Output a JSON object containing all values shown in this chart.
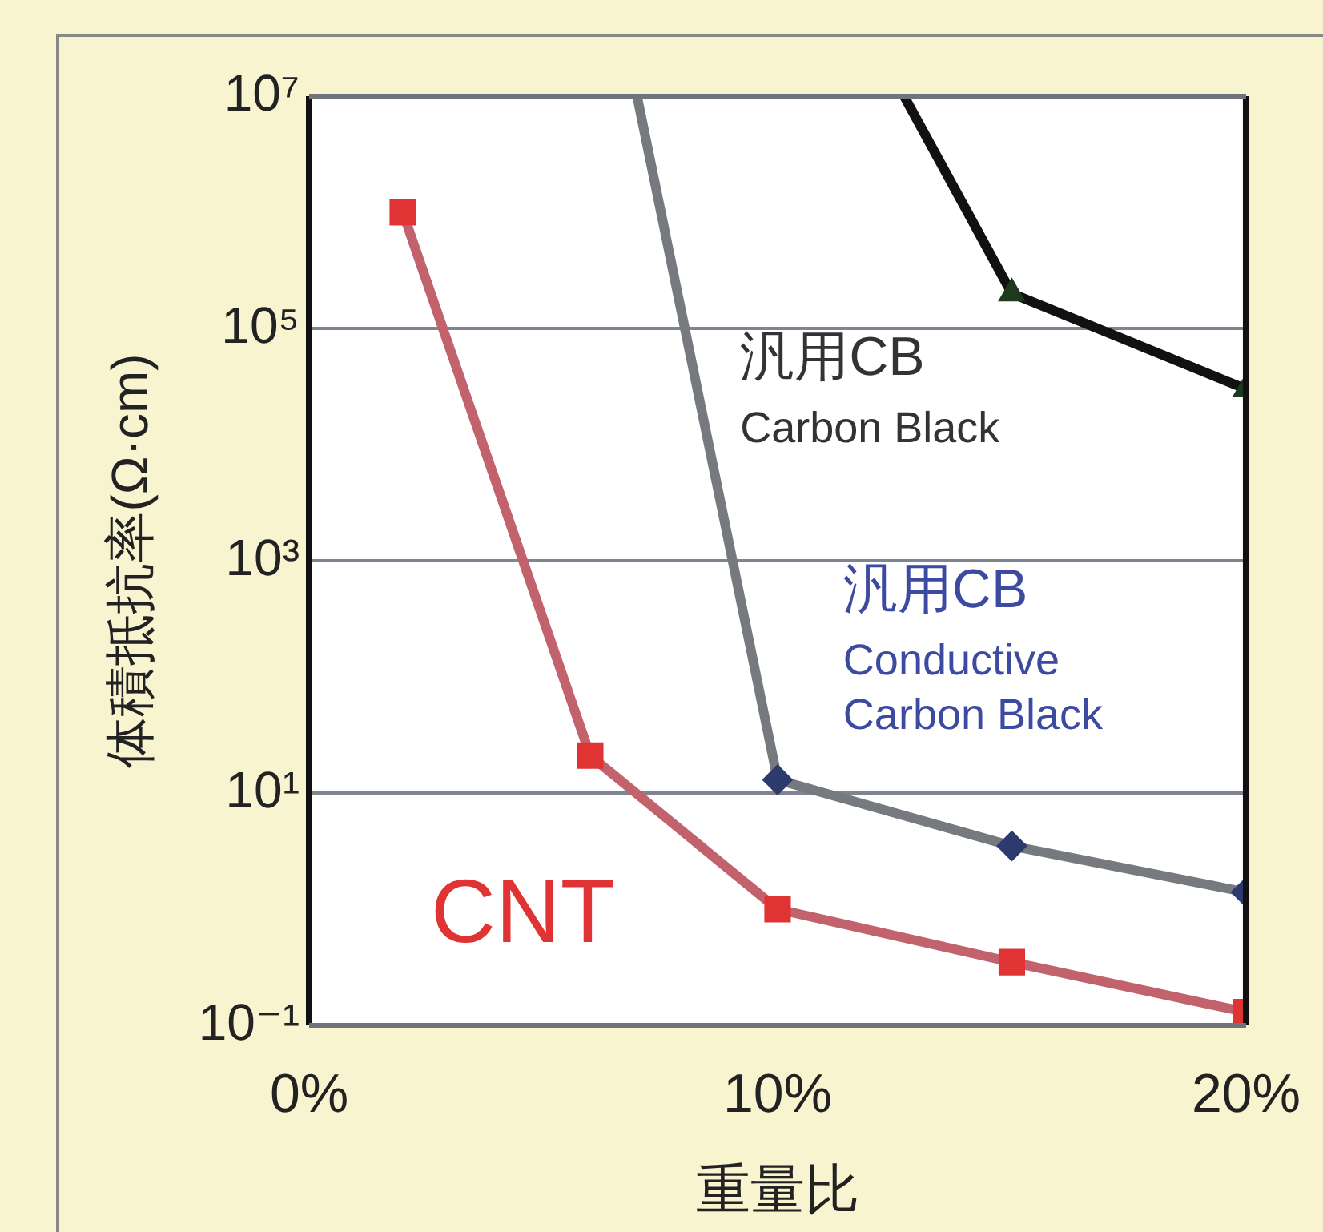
{
  "chart_data": {
    "type": "line",
    "xlabel": "重量比",
    "ylabel": "体積抵抗率(Ω·cm)",
    "log": "y",
    "grid": "y",
    "legend": false,
    "line_style": "solid",
    "xlim": [
      0,
      20
    ],
    "xticks": [
      {
        "value": 0,
        "label": "0%"
      },
      {
        "value": 10,
        "label": "10%"
      },
      {
        "value": 20,
        "label": "20%"
      }
    ],
    "ylim": [
      0.1,
      10000000
    ],
    "yticks": [
      {
        "value": 0.1,
        "label": "10⁻¹"
      },
      {
        "value": 10,
        "label": "10¹"
      },
      {
        "value": 1000,
        "label": "10³"
      },
      {
        "value": 100000,
        "label": "10⁵"
      },
      {
        "value": 10000000,
        "label": "10⁷"
      }
    ],
    "series": [
      {
        "name": "CNT",
        "color": "#c2626c",
        "marker": "square",
        "x": [
          2,
          6,
          10,
          15,
          20
        ],
        "values": [
          1000000,
          21,
          1,
          0.35,
          0.13
        ]
      },
      {
        "name": "汎用CB\nConductive\nCarbon Black",
        "color": "#76797e",
        "marker": "diamond",
        "x": [
          7,
          10,
          15,
          20
        ],
        "values": [
          10000000,
          13,
          3.5,
          1.4
        ]
      },
      {
        "name": "汎用CB\nCarbon Black",
        "color": "#111111",
        "marker": "triangle",
        "x": [
          12.7,
          15,
          20
        ],
        "values": [
          10000000,
          200000,
          30000
        ]
      }
    ]
  }
}
